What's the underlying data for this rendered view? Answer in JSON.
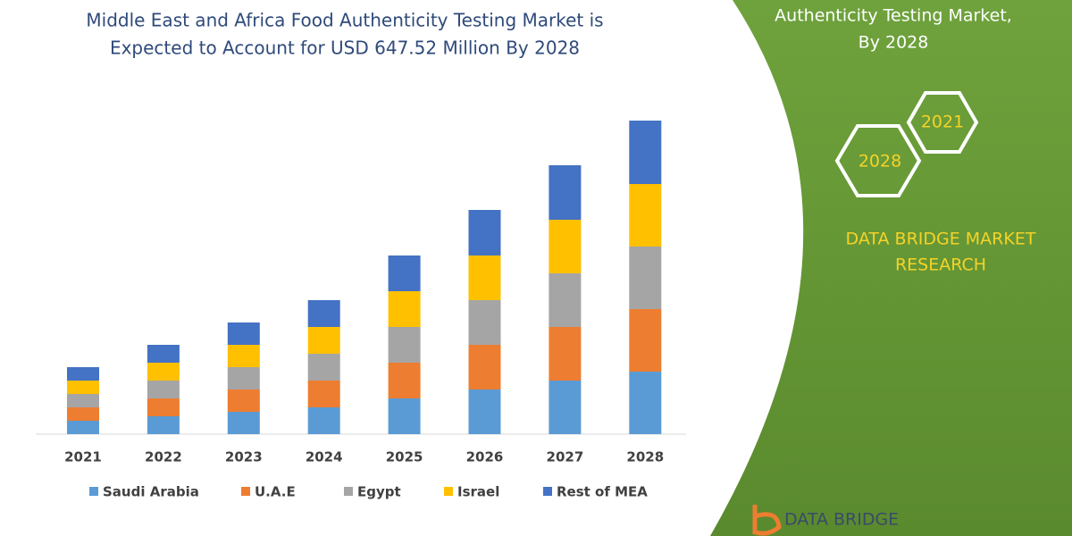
{
  "chart_data": {
    "type": "bar",
    "stacked": true,
    "title": [
      "Middle East and Africa Food Authenticity Testing Market is",
      "Expected to Account for USD 647.52 Million By 2028"
    ],
    "categories": [
      "2021",
      "2022",
      "2023",
      "2024",
      "2025",
      "2026",
      "2027",
      "2028"
    ],
    "series": [
      {
        "name": "Saudi Arabia",
        "color": "#5b9bd5",
        "values": [
          15,
          20,
          25,
          30,
          40,
          50,
          60,
          70
        ]
      },
      {
        "name": "U.A.E",
        "color": "#ed7d31",
        "values": [
          15,
          20,
          25,
          30,
          40,
          50,
          60,
          70
        ]
      },
      {
        "name": "Egypt",
        "color": "#a5a5a5",
        "values": [
          15,
          20,
          25,
          30,
          40,
          50,
          60,
          70
        ]
      },
      {
        "name": "Israel",
        "color": "#ffc000",
        "values": [
          15,
          20,
          25,
          30,
          40,
          50,
          60,
          70
        ]
      },
      {
        "name": "Rest of MEA",
        "color": "#4472c4",
        "values": [
          15,
          20,
          25,
          30,
          40,
          51,
          61,
          71
        ]
      }
    ]
  },
  "panel": {
    "heading": [
      "Authenticity Testing Market,",
      "By 2028"
    ],
    "hexagons": [
      "2021",
      "2028"
    ],
    "brand": [
      "DATA BRIDGE MARKET",
      "RESEARCH"
    ],
    "logo": "DATA BRIDGE"
  }
}
